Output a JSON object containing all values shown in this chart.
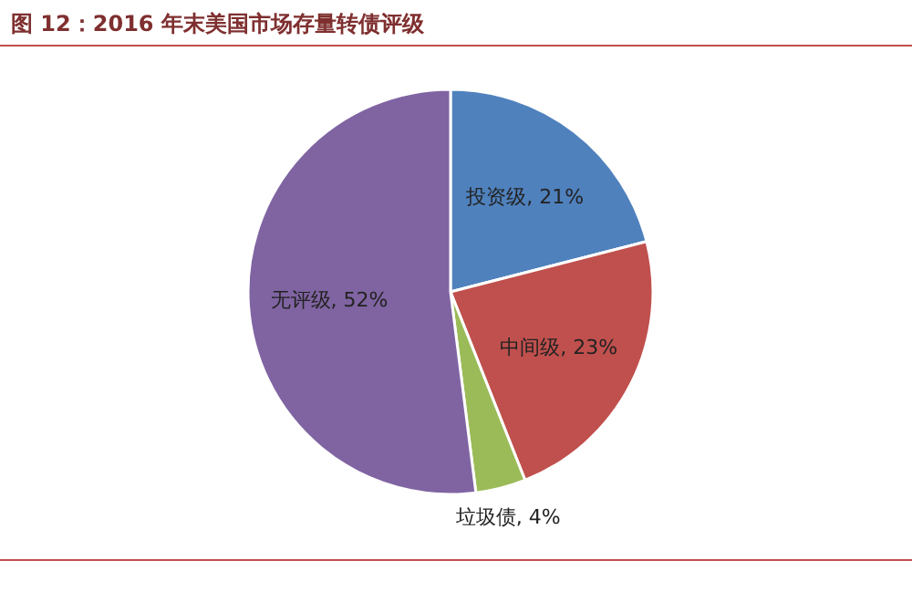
{
  "chart_data": {
    "type": "pie",
    "title": "图 12：2016 年末美国市场存量转债评级",
    "categories": [
      "投资级",
      "中间级",
      "垃圾债",
      "无评级"
    ],
    "values": [
      21,
      23,
      4,
      52
    ],
    "value_labels": [
      "21%",
      "23%",
      "4%",
      "52%"
    ],
    "colors": [
      "#4f81bd",
      "#c0504d",
      "#9bbb59",
      "#8064a2"
    ]
  }
}
